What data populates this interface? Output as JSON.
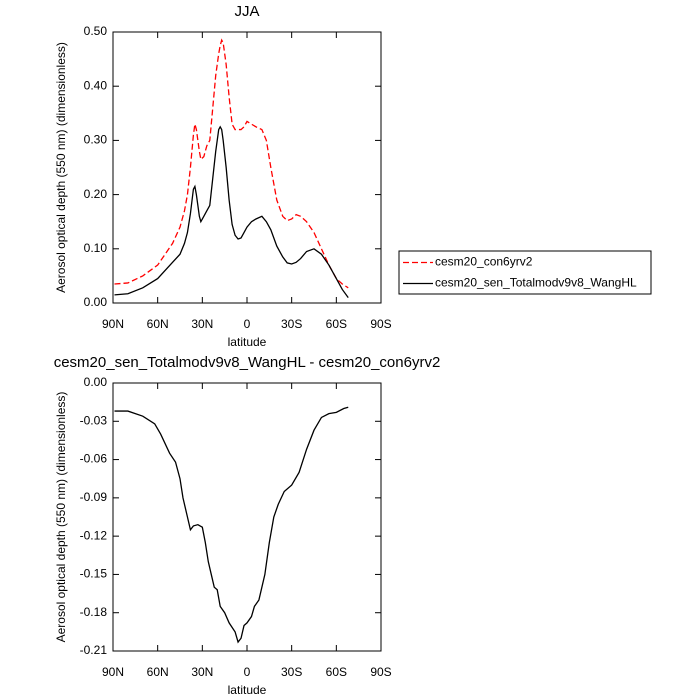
{
  "chart_data": [
    {
      "type": "line",
      "title": "JJA",
      "xlabel": "latitude",
      "ylabel": "Aerosol optical depth (550 nm) (dimensionless)",
      "x": [
        89,
        80,
        70,
        60,
        50,
        45,
        42,
        40,
        38,
        36,
        35,
        34,
        32,
        31,
        29,
        27,
        25,
        23,
        21,
        19,
        18,
        17,
        16,
        14,
        12,
        10,
        8,
        6,
        4,
        2,
        0,
        -3,
        -6,
        -10,
        -13,
        -16,
        -20,
        -24,
        -27,
        -30,
        -33,
        -36,
        -40,
        -45,
        -50,
        -55,
        -60,
        -64,
        -68
      ],
      "series": [
        {
          "name": "cesm20_con6yrv2",
          "color": "#ff0000",
          "linestyle": "dashed",
          "values": [
            0.035,
            0.037,
            0.05,
            0.07,
            0.11,
            0.14,
            0.17,
            0.2,
            0.25,
            0.31,
            0.33,
            0.32,
            0.28,
            0.265,
            0.27,
            0.29,
            0.3,
            0.36,
            0.42,
            0.46,
            0.475,
            0.485,
            0.48,
            0.44,
            0.38,
            0.33,
            0.32,
            0.32,
            0.32,
            0.325,
            0.335,
            0.33,
            0.325,
            0.32,
            0.3,
            0.25,
            0.19,
            0.16,
            0.152,
            0.155,
            0.163,
            0.16,
            0.15,
            0.13,
            0.1,
            0.07,
            0.045,
            0.035,
            0.028
          ]
        },
        {
          "name": "cesm20_sen_Totalmodv9v8_WangHL",
          "color": "#000000",
          "linestyle": "solid",
          "values": [
            0.015,
            0.017,
            0.028,
            0.045,
            0.075,
            0.09,
            0.11,
            0.13,
            0.165,
            0.21,
            0.215,
            0.2,
            0.16,
            0.15,
            0.16,
            0.17,
            0.18,
            0.23,
            0.28,
            0.32,
            0.325,
            0.32,
            0.3,
            0.25,
            0.19,
            0.145,
            0.125,
            0.118,
            0.12,
            0.13,
            0.14,
            0.15,
            0.155,
            0.16,
            0.15,
            0.135,
            0.105,
            0.085,
            0.074,
            0.072,
            0.075,
            0.082,
            0.095,
            0.1,
            0.09,
            0.07,
            0.045,
            0.025,
            0.01
          ]
        }
      ],
      "xlim": [
        90,
        -90
      ],
      "xticks": [
        {
          "value": 90,
          "label": "90N"
        },
        {
          "value": 60,
          "label": "60N"
        },
        {
          "value": 30,
          "label": "30N"
        },
        0,
        {
          "value": -30,
          "label": "30S"
        },
        {
          "value": -60,
          "label": "60S"
        },
        {
          "value": -90,
          "label": "90S"
        }
      ],
      "ylim": [
        0,
        0.5
      ],
      "yticks": [
        {
          "value": 0,
          "label": "0.00"
        },
        {
          "value": 0.1,
          "label": "0.10"
        },
        {
          "value": 0.2,
          "label": "0.20"
        },
        {
          "value": 0.3,
          "label": "0.30"
        },
        {
          "value": 0.4,
          "label": "0.40"
        },
        {
          "value": 0.5,
          "label": "0.50"
        }
      ],
      "legend": "right"
    },
    {
      "type": "line",
      "title": "cesm20_sen_Totalmodv9v8_WangHL - cesm20_con6yrv2",
      "xlabel": "latitude",
      "ylabel": "Aerosol optical depth (550 nm) (dimensionless)",
      "x": [
        89,
        80,
        70,
        62,
        58,
        52,
        48,
        45,
        43,
        40,
        38,
        36,
        33,
        30,
        28,
        26,
        24,
        22,
        20,
        18,
        15,
        12,
        8,
        6,
        4,
        2,
        0,
        -3,
        -5,
        -8,
        -12,
        -15,
        -18,
        -21,
        -25,
        -30,
        -35,
        -40,
        -45,
        -50,
        -55,
        -60,
        -65,
        -68
      ],
      "values": [
        -0.022,
        -0.022,
        -0.026,
        -0.032,
        -0.04,
        -0.055,
        -0.062,
        -0.075,
        -0.09,
        -0.105,
        -0.115,
        -0.112,
        -0.111,
        -0.113,
        -0.125,
        -0.14,
        -0.15,
        -0.16,
        -0.162,
        -0.175,
        -0.18,
        -0.188,
        -0.195,
        -0.203,
        -0.2,
        -0.19,
        -0.188,
        -0.183,
        -0.175,
        -0.17,
        -0.15,
        -0.125,
        -0.105,
        -0.095,
        -0.085,
        -0.08,
        -0.07,
        -0.052,
        -0.037,
        -0.027,
        -0.024,
        -0.023,
        -0.02,
        -0.019
      ],
      "color": "#000000",
      "xlim": [
        90,
        -90
      ],
      "xticks": [
        {
          "value": 90,
          "label": "90N"
        },
        {
          "value": 60,
          "label": "60N"
        },
        {
          "value": 30,
          "label": "30N"
        },
        0,
        {
          "value": -30,
          "label": "30S"
        },
        {
          "value": -60,
          "label": "60S"
        },
        {
          "value": -90,
          "label": "90S"
        }
      ],
      "ylim": [
        -0.21,
        0
      ],
      "yticks": [
        {
          "value": 0,
          "label": "0.00"
        },
        -0.03,
        -0.06,
        -0.09,
        -0.12,
        -0.15,
        -0.18,
        -0.21
      ]
    }
  ]
}
